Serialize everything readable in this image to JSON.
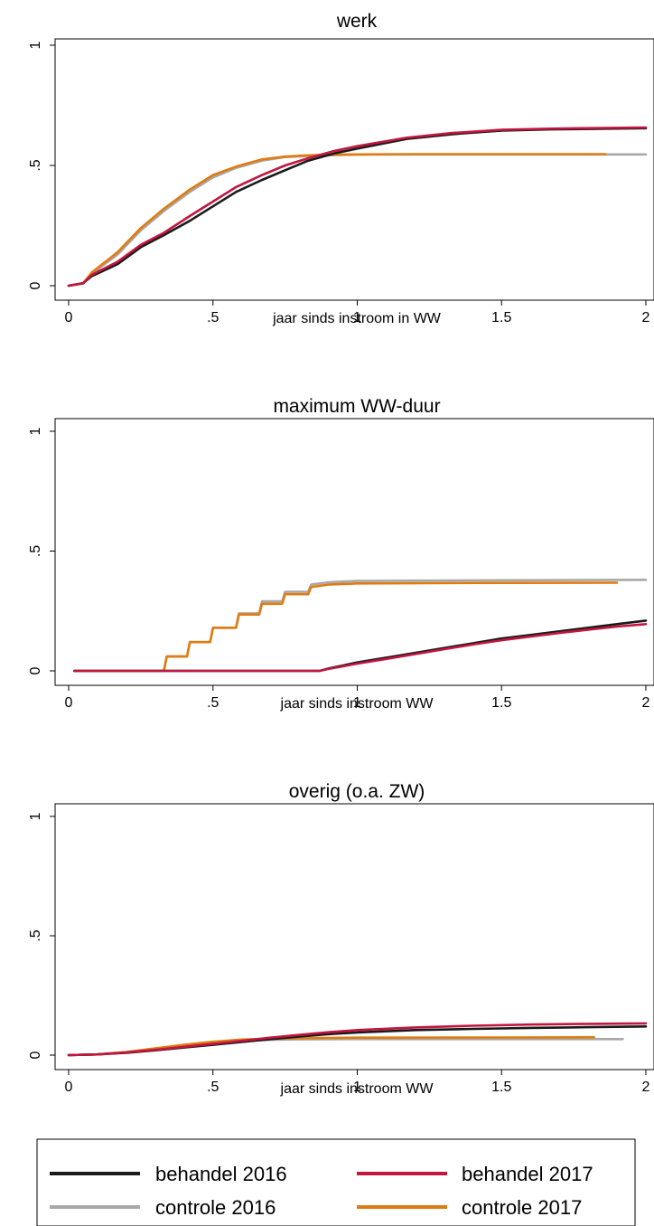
{
  "colors": {
    "behandel_2016": "#1a1a1a",
    "behandel_2017": "#c0163f",
    "controle_2016": "#a8a8a8",
    "controle_2017": "#e07b0f"
  },
  "legend": {
    "position": "bottom",
    "items": [
      {
        "key": "behandel_2016",
        "label": "behandel 2016"
      },
      {
        "key": "behandel_2017",
        "label": "behandel 2017"
      },
      {
        "key": "controle_2016",
        "label": "controle 2016"
      },
      {
        "key": "controle_2017",
        "label": "controle 2017"
      }
    ]
  },
  "chart_data": [
    {
      "type": "line",
      "title": "werk",
      "xlabel": "jaar sinds instroom in WW",
      "ylabel": "",
      "xlim": [
        0,
        2
      ],
      "ylim": [
        0,
        1
      ],
      "xticks": [
        "0",
        ".5",
        "1",
        "1.5",
        "2"
      ],
      "yticks": [
        "0",
        ".5",
        "1"
      ],
      "grid": false,
      "series": [
        {
          "key": "behandel_2016",
          "x": [
            0,
            0.05,
            0.08,
            0.17,
            0.25,
            0.33,
            0.42,
            0.5,
            0.58,
            0.67,
            0.75,
            0.83,
            0.92,
            1.0,
            1.17,
            1.33,
            1.5,
            1.67,
            2.0
          ],
          "y": [
            0,
            0.01,
            0.04,
            0.09,
            0.16,
            0.21,
            0.27,
            0.33,
            0.39,
            0.44,
            0.48,
            0.52,
            0.55,
            0.57,
            0.61,
            0.63,
            0.645,
            0.65,
            0.655
          ]
        },
        {
          "key": "behandel_2017",
          "x": [
            0,
            0.05,
            0.08,
            0.17,
            0.25,
            0.33,
            0.42,
            0.5,
            0.58,
            0.67,
            0.75,
            0.83,
            0.92,
            1.0,
            1.17,
            1.33,
            1.5,
            1.67,
            2.0
          ],
          "y": [
            0,
            0.01,
            0.045,
            0.1,
            0.17,
            0.22,
            0.29,
            0.35,
            0.41,
            0.46,
            0.5,
            0.53,
            0.56,
            0.58,
            0.615,
            0.635,
            0.648,
            0.653,
            0.658
          ]
        },
        {
          "key": "controle_2016",
          "x": [
            0,
            0.05,
            0.08,
            0.17,
            0.25,
            0.33,
            0.42,
            0.5,
            0.58,
            0.67,
            0.75,
            0.83,
            0.92,
            1.0,
            1.2,
            1.5,
            2.0
          ],
          "y": [
            0,
            0.01,
            0.05,
            0.13,
            0.23,
            0.31,
            0.39,
            0.45,
            0.49,
            0.52,
            0.535,
            0.54,
            0.543,
            0.545,
            0.546,
            0.546,
            0.546
          ]
        },
        {
          "key": "controle_2017",
          "x": [
            0,
            0.05,
            0.08,
            0.17,
            0.25,
            0.33,
            0.42,
            0.5,
            0.58,
            0.67,
            0.75,
            0.83,
            0.92,
            1.0,
            1.2,
            1.5,
            1.86
          ],
          "y": [
            0,
            0.01,
            0.055,
            0.14,
            0.24,
            0.32,
            0.4,
            0.46,
            0.495,
            0.525,
            0.537,
            0.542,
            0.545,
            0.546,
            0.547,
            0.547,
            0.547
          ]
        }
      ]
    },
    {
      "type": "line",
      "title": "maximum WW-duur",
      "xlabel": "jaar sinds instroom WW",
      "ylabel": "",
      "xlim": [
        0,
        2
      ],
      "ylim": [
        0,
        1
      ],
      "xticks": [
        "0",
        ".5",
        "1",
        "1.5",
        "2"
      ],
      "yticks": [
        "0",
        ".5",
        "1"
      ],
      "grid": false,
      "series": [
        {
          "key": "behandel_2016",
          "x": [
            0.02,
            0.5,
            0.87,
            0.9,
            1.0,
            1.1,
            1.2,
            1.3,
            1.4,
            1.5,
            1.6,
            1.7,
            1.8,
            1.9,
            2.0
          ],
          "y": [
            0,
            0,
            0,
            0.01,
            0.035,
            0.055,
            0.075,
            0.095,
            0.115,
            0.135,
            0.15,
            0.165,
            0.18,
            0.195,
            0.21
          ]
        },
        {
          "key": "behandel_2017",
          "x": [
            0.02,
            0.5,
            0.87,
            0.9,
            1.0,
            1.1,
            1.2,
            1.3,
            1.4,
            1.5,
            1.6,
            1.7,
            1.8,
            1.9,
            2.0
          ],
          "y": [
            0,
            0,
            0,
            0.008,
            0.03,
            0.05,
            0.07,
            0.09,
            0.11,
            0.128,
            0.143,
            0.158,
            0.172,
            0.185,
            0.195
          ]
        },
        {
          "key": "controle_2016",
          "x": [
            0.02,
            0.33,
            0.34,
            0.41,
            0.42,
            0.49,
            0.5,
            0.58,
            0.59,
            0.66,
            0.67,
            0.74,
            0.75,
            0.83,
            0.84,
            0.9,
            1.0,
            1.5,
            2.0
          ],
          "y": [
            0,
            0,
            0.06,
            0.06,
            0.12,
            0.12,
            0.18,
            0.18,
            0.24,
            0.24,
            0.29,
            0.29,
            0.33,
            0.33,
            0.36,
            0.37,
            0.375,
            0.378,
            0.38
          ]
        },
        {
          "key": "controle_2017",
          "x": [
            0.02,
            0.33,
            0.34,
            0.41,
            0.42,
            0.49,
            0.5,
            0.58,
            0.59,
            0.66,
            0.67,
            0.74,
            0.75,
            0.83,
            0.84,
            0.9,
            1.0,
            1.5,
            1.9
          ],
          "y": [
            0,
            0,
            0.06,
            0.06,
            0.12,
            0.12,
            0.18,
            0.18,
            0.235,
            0.235,
            0.28,
            0.28,
            0.32,
            0.32,
            0.35,
            0.36,
            0.365,
            0.367,
            0.368
          ]
        }
      ]
    },
    {
      "type": "line",
      "title": "overig (o.a. ZW)",
      "xlabel": "jaar sinds instroom WW",
      "ylabel": "",
      "xlim": [
        0,
        2
      ],
      "ylim": [
        0,
        1
      ],
      "xticks": [
        "0",
        ".5",
        "1",
        "1.5",
        "2"
      ],
      "yticks": [
        "0",
        ".5",
        "1"
      ],
      "grid": false,
      "series": [
        {
          "key": "behandel_2016",
          "x": [
            0,
            0.1,
            0.2,
            0.3,
            0.4,
            0.5,
            0.6,
            0.7,
            0.8,
            0.9,
            1.0,
            1.2,
            1.4,
            1.6,
            1.8,
            2.0
          ],
          "y": [
            0,
            0.003,
            0.01,
            0.02,
            0.032,
            0.043,
            0.055,
            0.067,
            0.078,
            0.088,
            0.095,
            0.105,
            0.11,
            0.114,
            0.117,
            0.12
          ]
        },
        {
          "key": "behandel_2017",
          "x": [
            0,
            0.1,
            0.2,
            0.3,
            0.4,
            0.5,
            0.6,
            0.7,
            0.8,
            0.9,
            1.0,
            1.2,
            1.4,
            1.6,
            1.8,
            2.0
          ],
          "y": [
            0,
            0.003,
            0.011,
            0.022,
            0.035,
            0.047,
            0.06,
            0.073,
            0.085,
            0.096,
            0.105,
            0.116,
            0.123,
            0.128,
            0.131,
            0.133
          ]
        },
        {
          "key": "controle_2016",
          "x": [
            0,
            0.1,
            0.2,
            0.3,
            0.4,
            0.5,
            0.6,
            0.7,
            0.8,
            1.0,
            1.5,
            1.92
          ],
          "y": [
            0,
            0.003,
            0.012,
            0.025,
            0.04,
            0.052,
            0.06,
            0.064,
            0.066,
            0.067,
            0.067,
            0.067
          ]
        },
        {
          "key": "controle_2017",
          "x": [
            0,
            0.1,
            0.2,
            0.3,
            0.4,
            0.5,
            0.6,
            0.7,
            0.8,
            1.0,
            1.5,
            1.82
          ],
          "y": [
            0,
            0.003,
            0.013,
            0.028,
            0.043,
            0.056,
            0.065,
            0.069,
            0.071,
            0.073,
            0.074,
            0.075
          ]
        }
      ]
    }
  ]
}
